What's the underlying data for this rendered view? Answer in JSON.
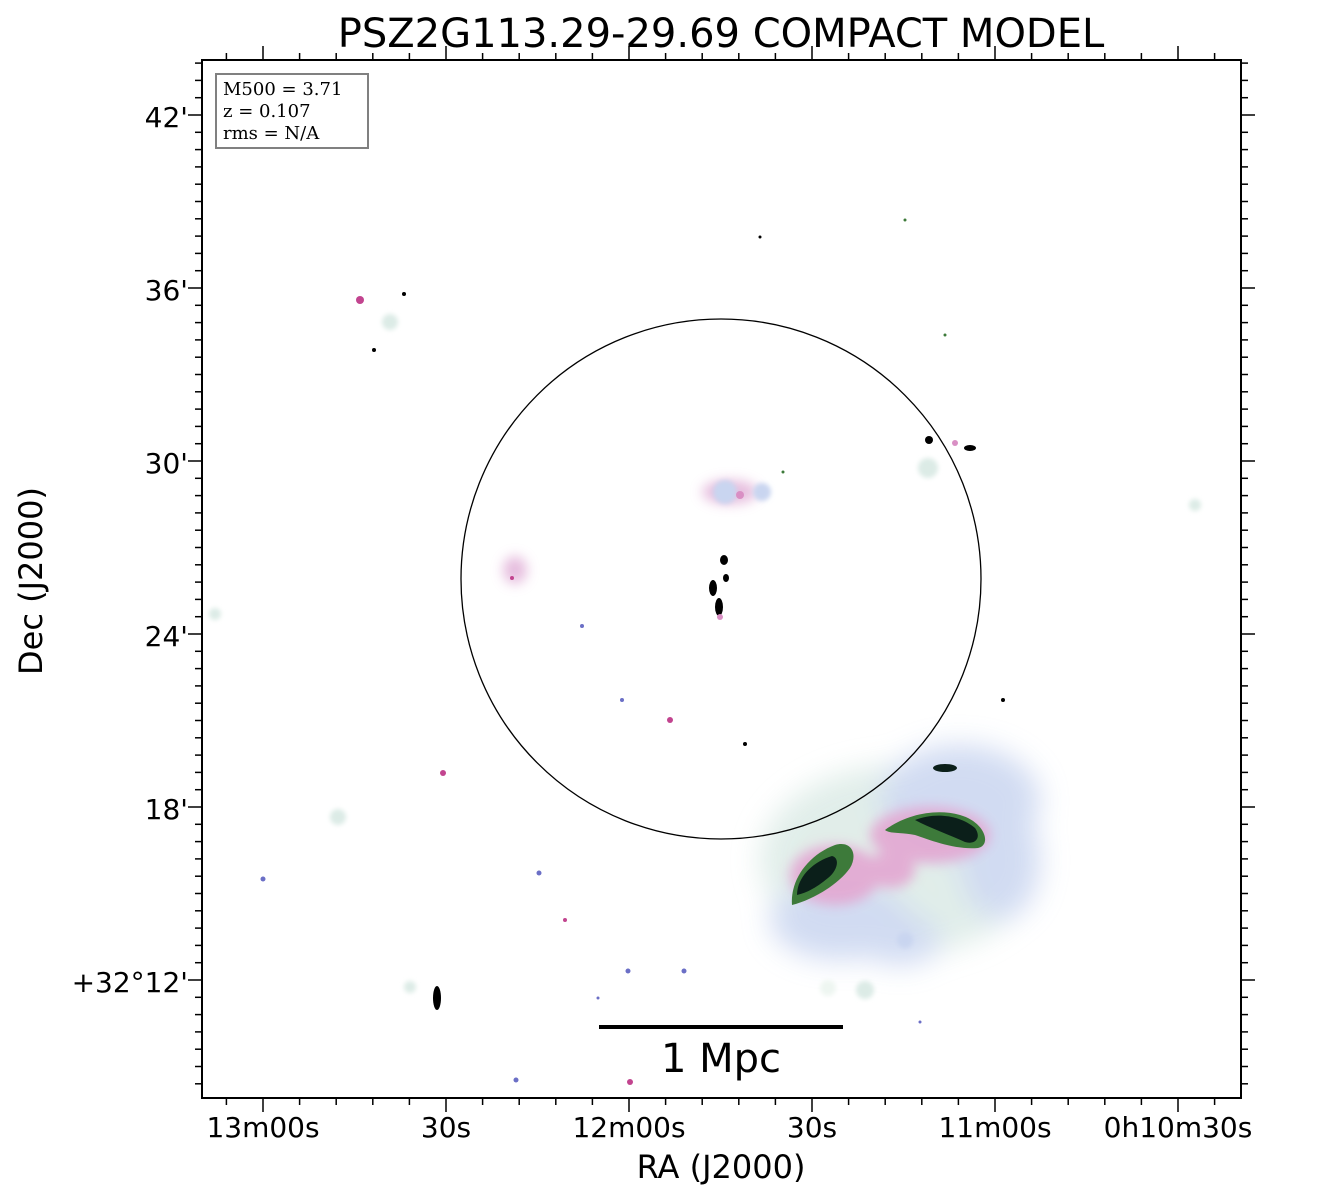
{
  "title": "PSZ2G113.29-29.69 COMPACT MODEL",
  "info_box": {
    "m500": "M500 = 3.71",
    "z": "z = 0.107",
    "rms": "rms = N/A"
  },
  "axes": {
    "xlabel": "RA (J2000)",
    "ylabel": "Dec (J2000)",
    "x_ticks": [
      "13m00s",
      "30s",
      "12m00s",
      "30s",
      "11m00s",
      "0h10m30s"
    ],
    "y_ticks": [
      "42'",
      "36'",
      "30'",
      "24'",
      "18'",
      "+32°12'"
    ]
  },
  "scale_bar": {
    "label": "1 Mpc"
  },
  "colors": {
    "frame": "#000000",
    "emission_dark": "#0b1f1a",
    "emission_green": "#3d7a3a",
    "emission_pink": "#d98fc4",
    "emission_blue": "#b9c8ea",
    "emission_teal": "#d2ecdf"
  }
}
